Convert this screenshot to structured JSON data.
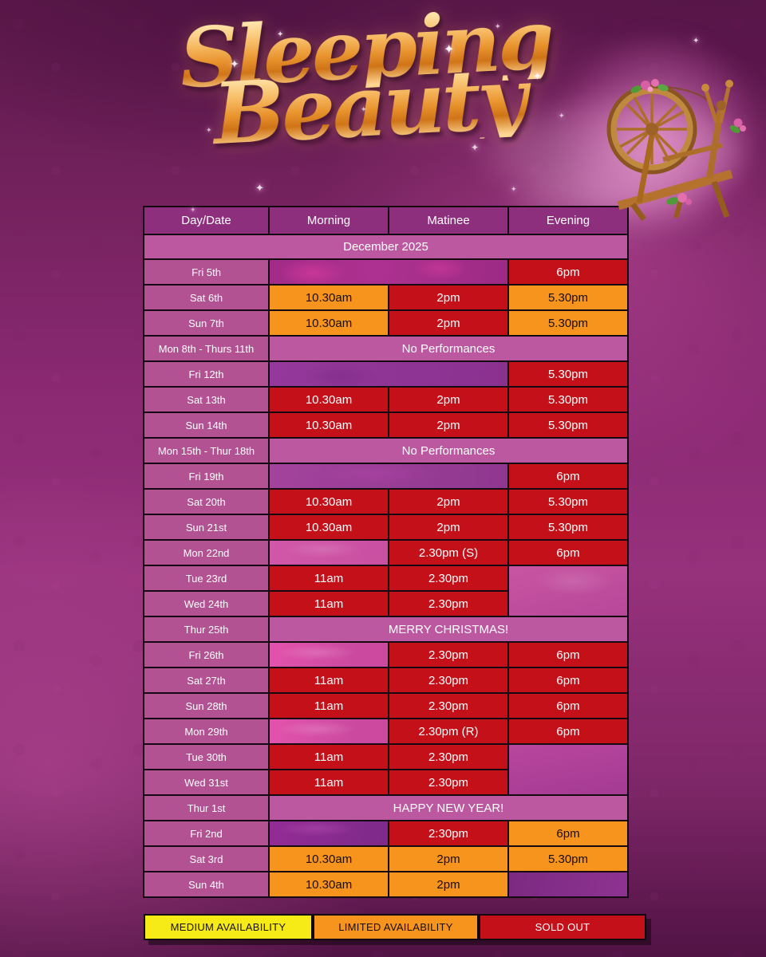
{
  "title": {
    "line1": "Sleeping",
    "line2": "Beauty"
  },
  "colors": {
    "sold_out": "#c41019",
    "limited": "#f7941e",
    "medium": "#f6eb16",
    "header_bg": "#8e2f7e",
    "banner_bg": "#bc58a0",
    "day_bg": "#b35292"
  },
  "table": {
    "headers": [
      "Day/Date",
      "Morning",
      "Matinee",
      "Evening"
    ],
    "month_banner": "December 2025",
    "rows": [
      {
        "day": "Fri 5th",
        "cells": [
          {
            "text": "",
            "status": "none",
            "tint": "t1",
            "colspan": 2
          },
          {
            "text": "6pm",
            "status": "sold_out"
          }
        ]
      },
      {
        "day": "Sat 6th",
        "cells": [
          {
            "text": "10.30am",
            "status": "limited"
          },
          {
            "text": "2pm",
            "status": "sold_out"
          },
          {
            "text": "5.30pm",
            "status": "limited"
          }
        ]
      },
      {
        "day": "Sun 7th",
        "cells": [
          {
            "text": "10.30am",
            "status": "limited"
          },
          {
            "text": "2pm",
            "status": "sold_out"
          },
          {
            "text": "5.30pm",
            "status": "limited"
          }
        ]
      },
      {
        "day": "Mon 8th - Thurs 11th",
        "note": "No Performances"
      },
      {
        "day": "Fri 12th",
        "cells": [
          {
            "text": "",
            "status": "none",
            "tint": "t2",
            "colspan": 2
          },
          {
            "text": "5.30pm",
            "status": "sold_out"
          }
        ]
      },
      {
        "day": "Sat 13th",
        "cells": [
          {
            "text": "10.30am",
            "status": "sold_out"
          },
          {
            "text": "2pm",
            "status": "sold_out"
          },
          {
            "text": "5.30pm",
            "status": "sold_out"
          }
        ]
      },
      {
        "day": "Sun 14th",
        "cells": [
          {
            "text": "10.30am",
            "status": "sold_out"
          },
          {
            "text": "2pm",
            "status": "sold_out"
          },
          {
            "text": "5.30pm",
            "status": "sold_out"
          }
        ]
      },
      {
        "day": "Mon 15th - Thur 18th",
        "note": "No Performances"
      },
      {
        "day": "Fri 19th",
        "cells": [
          {
            "text": "",
            "status": "none",
            "tint": "t3",
            "colspan": 2
          },
          {
            "text": "6pm",
            "status": "sold_out"
          }
        ]
      },
      {
        "day": "Sat 20th",
        "cells": [
          {
            "text": "10.30am",
            "status": "sold_out"
          },
          {
            "text": "2pm",
            "status": "sold_out"
          },
          {
            "text": "5.30pm",
            "status": "sold_out"
          }
        ]
      },
      {
        "day": "Sun 21st",
        "cells": [
          {
            "text": "10.30am",
            "status": "sold_out"
          },
          {
            "text": "2pm",
            "status": "sold_out"
          },
          {
            "text": "5.30pm",
            "status": "sold_out"
          }
        ]
      },
      {
        "day": "Mon 22nd",
        "cells": [
          {
            "text": "",
            "status": "none",
            "tint": "t4"
          },
          {
            "text": "2.30pm (S)",
            "status": "sold_out"
          },
          {
            "text": "6pm",
            "status": "sold_out"
          }
        ]
      },
      {
        "day": "Tue 23rd",
        "cells": [
          {
            "text": "11am",
            "status": "sold_out"
          },
          {
            "text": "2.30pm",
            "status": "sold_out"
          },
          {
            "text": "",
            "status": "none",
            "tint": "t5",
            "rowspan": 2
          }
        ]
      },
      {
        "day": "Wed 24th",
        "cells": [
          {
            "text": "11am",
            "status": "sold_out"
          },
          {
            "text": "2.30pm",
            "status": "sold_out"
          }
        ]
      },
      {
        "day": "Thur 25th",
        "note": "MERRY CHRISTMAS!"
      },
      {
        "day": "Fri 26th",
        "cells": [
          {
            "text": "",
            "status": "none",
            "tint": "t6"
          },
          {
            "text": "2.30pm",
            "status": "sold_out"
          },
          {
            "text": "6pm",
            "status": "sold_out"
          }
        ]
      },
      {
        "day": "Sat 27th",
        "cells": [
          {
            "text": "11am",
            "status": "sold_out"
          },
          {
            "text": "2.30pm",
            "status": "sold_out"
          },
          {
            "text": "6pm",
            "status": "sold_out"
          }
        ]
      },
      {
        "day": "Sun 28th",
        "cells": [
          {
            "text": "11am",
            "status": "sold_out"
          },
          {
            "text": "2.30pm",
            "status": "sold_out"
          },
          {
            "text": "6pm",
            "status": "sold_out"
          }
        ]
      },
      {
        "day": "Mon 29th",
        "cells": [
          {
            "text": "",
            "status": "none",
            "tint": "t6"
          },
          {
            "text": "2.30pm (R)",
            "status": "sold_out"
          },
          {
            "text": "6pm",
            "status": "sold_out"
          }
        ]
      },
      {
        "day": "Tue 30th",
        "cells": [
          {
            "text": "11am",
            "status": "sold_out"
          },
          {
            "text": "2.30pm",
            "status": "sold_out"
          },
          {
            "text": "",
            "status": "none",
            "tint": "t7",
            "rowspan": 2
          }
        ]
      },
      {
        "day": "Wed 31st",
        "cells": [
          {
            "text": "11am",
            "status": "sold_out"
          },
          {
            "text": "2.30pm",
            "status": "sold_out"
          }
        ]
      },
      {
        "day": "Thur 1st",
        "note": "HAPPY NEW YEAR!"
      },
      {
        "day": "Fri 2nd",
        "cells": [
          {
            "text": "",
            "status": "none",
            "tint": "t8"
          },
          {
            "text": "2:30pm",
            "status": "sold_out"
          },
          {
            "text": "6pm",
            "status": "limited"
          }
        ]
      },
      {
        "day": "Sat 3rd",
        "cells": [
          {
            "text": "10.30am",
            "status": "limited"
          },
          {
            "text": "2pm",
            "status": "limited"
          },
          {
            "text": "5.30pm",
            "status": "limited"
          }
        ]
      },
      {
        "day": "Sun 4th",
        "cells": [
          {
            "text": "10.30am",
            "status": "limited"
          },
          {
            "text": "2pm",
            "status": "limited"
          },
          {
            "text": "",
            "status": "none",
            "tint": "t9"
          }
        ]
      }
    ]
  },
  "legend": [
    {
      "label": "MEDIUM AVAILABILITY",
      "status": "medium"
    },
    {
      "label": "LIMITED AVAILABILITY",
      "status": "limited"
    },
    {
      "label": "SOLD OUT",
      "status": "sold_out"
    }
  ]
}
